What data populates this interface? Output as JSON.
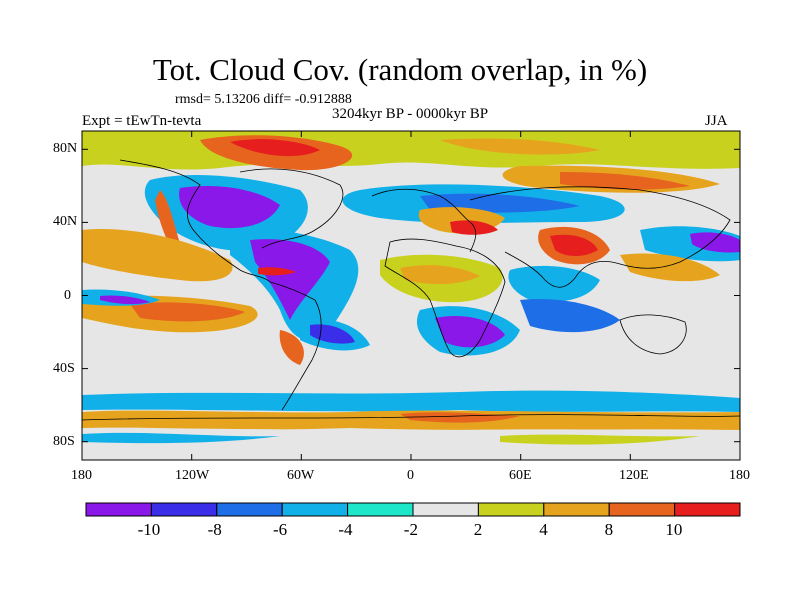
{
  "title": "Tot. Cloud Cov. (random overlap, in %)",
  "stats": "rmsd= 5.13206 diff= -0.912888",
  "period": "3204kyr BP - 0000kyr BP",
  "experiment": "Expt = tEwTn-tevta",
  "season": "JJA",
  "axes": {
    "y_ticks": [
      "80N",
      "40N",
      "0",
      "40S",
      "80S"
    ],
    "x_ticks": [
      "180",
      "120W",
      "60W",
      "0",
      "60E",
      "120E",
      "180"
    ]
  },
  "colorbar": {
    "labels": [
      "-10",
      "-8",
      "-6",
      "-4",
      "-2",
      "2",
      "4",
      "8",
      "10"
    ],
    "colors": [
      "#8a18e8",
      "#3a2ee8",
      "#1e6ee8",
      "#12b0e8",
      "#1ee6c8",
      "#e6e6e6",
      "#c8d21e",
      "#e6a41e",
      "#e6641e",
      "#e61e1e"
    ]
  },
  "colors": {
    "ocean_neutral": "#e6e6e6",
    "coastline": "#000000"
  }
}
